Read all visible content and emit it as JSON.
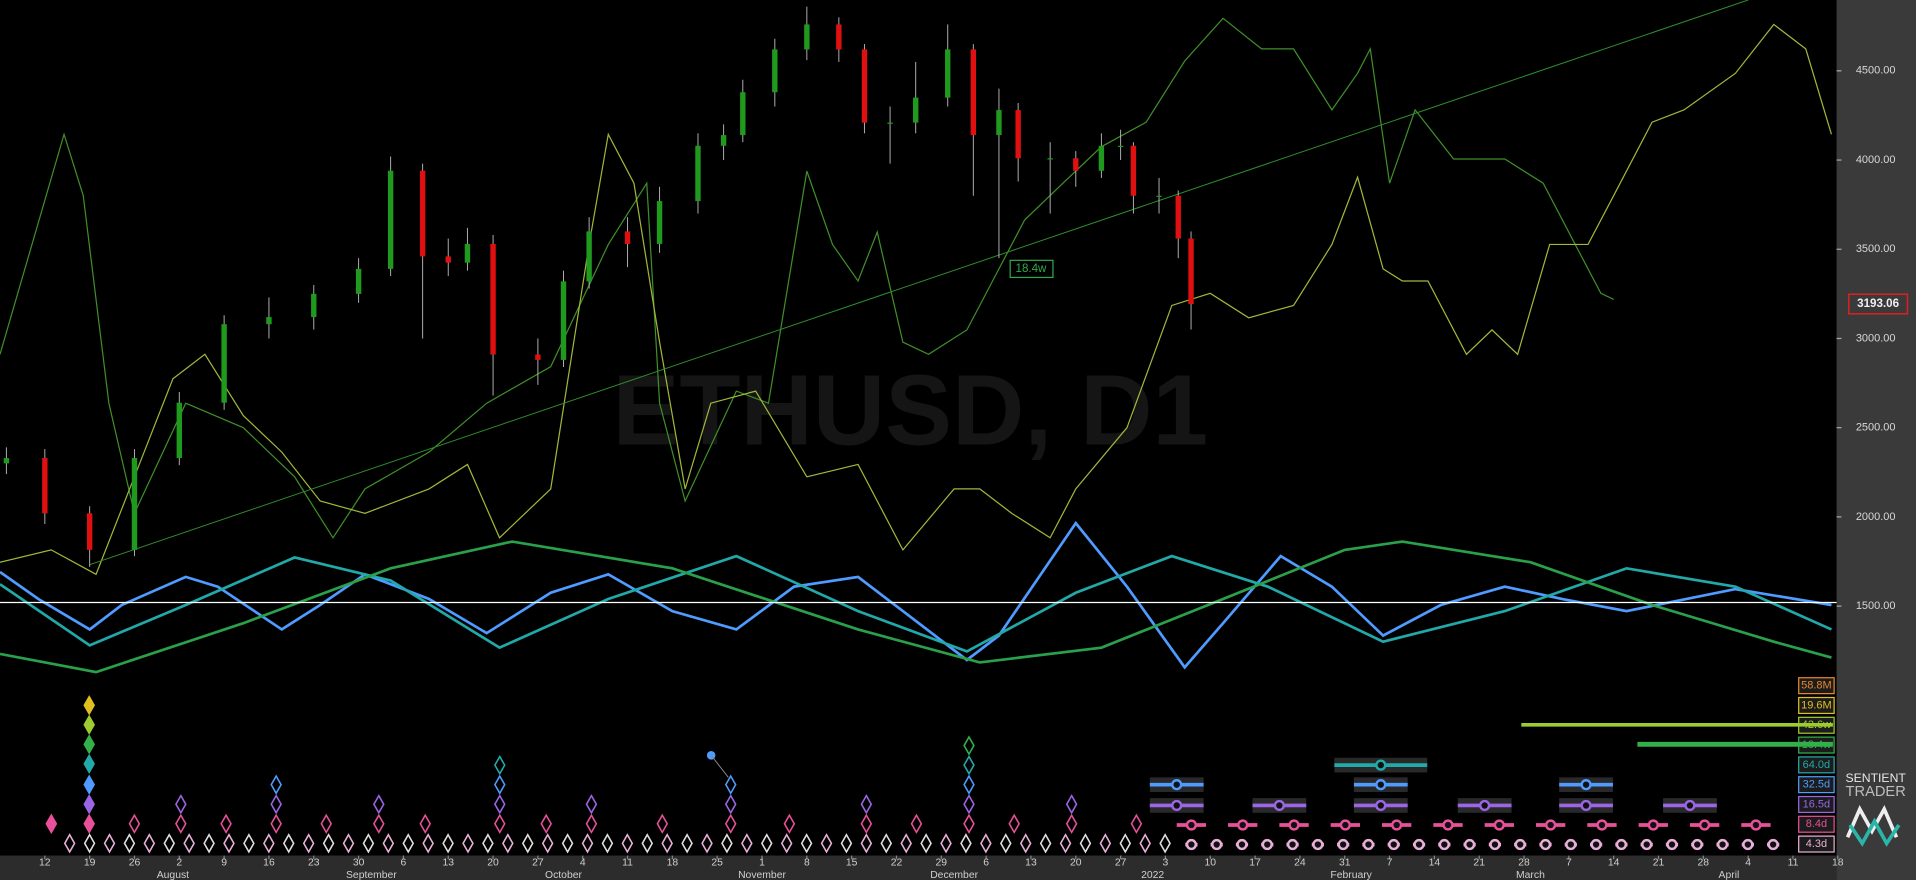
{
  "chart_data": {
    "type": "candlestick",
    "title": "ETHUSD, D1",
    "xlim": [
      0,
      287
    ],
    "ylim": [
      102,
      4897
    ],
    "xticks": [
      {
        "value": 7,
        "label": "12"
      },
      {
        "value": 14,
        "label": "19"
      },
      {
        "value": 21,
        "label": "26"
      },
      {
        "value": 28,
        "label": "2"
      },
      {
        "value": 35,
        "label": "9"
      },
      {
        "value": 42,
        "label": "16"
      },
      {
        "value": 49,
        "label": "23"
      },
      {
        "value": 56,
        "label": "30"
      },
      {
        "value": 63,
        "label": "6"
      },
      {
        "value": 70,
        "label": "13"
      },
      {
        "value": 77,
        "label": "20"
      },
      {
        "value": 84,
        "label": "27"
      },
      {
        "value": 91,
        "label": "4"
      },
      {
        "value": 98,
        "label": "11"
      },
      {
        "value": 105,
        "label": "18"
      },
      {
        "value": 112,
        "label": "25"
      },
      {
        "value": 119,
        "label": "1"
      },
      {
        "value": 126,
        "label": "8"
      },
      {
        "value": 133,
        "label": "15"
      },
      {
        "value": 140,
        "label": "22"
      },
      {
        "value": 147,
        "label": "29"
      },
      {
        "value": 154,
        "label": "6"
      },
      {
        "value": 161,
        "label": "13"
      },
      {
        "value": 168,
        "label": "20"
      },
      {
        "value": 175,
        "label": "27"
      },
      {
        "value": 182,
        "label": "3"
      },
      {
        "value": 189,
        "label": "10"
      },
      {
        "value": 196,
        "label": "17"
      },
      {
        "value": 203,
        "label": "24"
      },
      {
        "value": 210,
        "label": "31"
      },
      {
        "value": 217,
        "label": "7"
      },
      {
        "value": 224,
        "label": "14"
      },
      {
        "value": 231,
        "label": "21"
      },
      {
        "value": 238,
        "label": "28"
      },
      {
        "value": 245,
        "label": "7"
      },
      {
        "value": 252,
        "label": "14"
      },
      {
        "value": 259,
        "label": "21"
      },
      {
        "value": 266,
        "label": "28"
      },
      {
        "value": 273,
        "label": "4"
      },
      {
        "value": 280,
        "label": "11"
      },
      {
        "value": 287,
        "label": "18"
      }
    ],
    "month_ticks": [
      {
        "value": 27,
        "label": "August"
      },
      {
        "value": 58,
        "label": "September"
      },
      {
        "value": 88,
        "label": "October"
      },
      {
        "value": 119,
        "label": "November"
      },
      {
        "value": 149,
        "label": "December"
      },
      {
        "value": 180,
        "label": "2022"
      },
      {
        "value": 211,
        "label": "February"
      },
      {
        "value": 239,
        "label": "March"
      },
      {
        "value": 270,
        "label": "April"
      }
    ],
    "yticks": [
      {
        "value": 4500,
        "label": "4500.00"
      },
      {
        "value": 4000,
        "label": "4000.00"
      },
      {
        "value": 3500,
        "label": "3500.00"
      },
      {
        "value": 3000,
        "label": "3000.00"
      },
      {
        "value": 2500,
        "label": "2500.00"
      },
      {
        "value": 2000,
        "label": "2000.00"
      },
      {
        "value": 1500,
        "label": "1500.00"
      }
    ],
    "candles": {
      "up_color": "#1f9a1f",
      "down_color": "#e01010",
      "x": [
        1,
        7,
        14,
        21,
        28,
        35,
        42,
        49,
        56,
        61,
        66,
        70,
        73,
        77,
        84,
        88,
        92,
        98,
        103,
        109,
        113,
        116,
        121,
        126,
        131,
        135,
        139,
        143,
        148,
        152,
        156,
        159,
        164,
        168,
        172,
        175,
        177,
        181,
        184,
        186
      ],
      "open": [
        2300,
        2330,
        2020,
        1815,
        2330,
        2640,
        3080,
        3120,
        3250,
        3390,
        3940,
        3460,
        3425,
        3530,
        2910,
        2880,
        3320,
        3600,
        3530,
        3770,
        4080,
        4140,
        4380,
        4620,
        4760,
        4620,
        4210,
        4210,
        4350,
        4620,
        4140,
        4280,
        4010,
        4010,
        3940,
        4080,
        4080,
        3800,
        3800,
        3560
      ],
      "high": [
        2390,
        2380,
        2060,
        2380,
        2700,
        3130,
        3230,
        3300,
        3450,
        4020,
        3980,
        3560,
        3620,
        3580,
        3000,
        3380,
        3680,
        3680,
        3850,
        4150,
        4200,
        4450,
        4680,
        4860,
        4800,
        4650,
        4300,
        4550,
        4760,
        4650,
        4400,
        4320,
        4100,
        4050,
        4150,
        4170,
        4100,
        3900,
        3830,
        3600
      ],
      "low": [
        2240,
        1960,
        1720,
        1780,
        2290,
        2600,
        3000,
        3050,
        3200,
        3350,
        3000,
        3350,
        3380,
        2680,
        2740,
        2840,
        3280,
        3400,
        3480,
        3700,
        4000,
        4100,
        4300,
        4560,
        4550,
        4150,
        3980,
        4150,
        4300,
        3800,
        3450,
        3880,
        3700,
        3850,
        3900,
        4000,
        3700,
        3700,
        3450,
        3050
      ],
      "close": [
        2330,
        2020,
        1815,
        2330,
        2640,
        3080,
        3120,
        3250,
        3390,
        3940,
        3460,
        3425,
        3530,
        2910,
        2880,
        3320,
        3600,
        3530,
        3770,
        4080,
        4140,
        4380,
        4620,
        4760,
        4620,
        4210,
        4210,
        4350,
        4620,
        4140,
        4280,
        4010,
        4010,
        3940,
        4080,
        4080,
        3800,
        3800,
        3560,
        3193.06
      ]
    },
    "overlays": [
      {
        "color": "#3f8f2a",
        "x": [
          0,
          10,
          13,
          17,
          21,
          29,
          38,
          46,
          52,
          57,
          67,
          76,
          86,
          95,
          101,
          103,
          107,
          115,
          120,
          126,
          130,
          134,
          137,
          141,
          145,
          151,
          155,
          160,
          166,
          172,
          179,
          185,
          191,
          197,
          202,
          208,
          212,
          214,
          217,
          221,
          227,
          235,
          241,
          246,
          250,
          252
        ],
        "values": [
          2911,
          4144,
          3801,
          2637,
          2020,
          2637,
          2500,
          2225,
          1883,
          2157,
          2363,
          2637,
          2842,
          3527,
          3870,
          2637,
          2089,
          2705,
          2637,
          3938,
          3527,
          3322,
          3596,
          2979,
          2911,
          3048,
          3322,
          3664,
          3870,
          4075,
          4212,
          4555,
          4794,
          4623,
          4623,
          4281,
          4486,
          4623,
          3870,
          4281,
          4006,
          4006,
          3870,
          3527,
          3253,
          3219
        ]
      },
      {
        "color": "#9fb83a",
        "x": [
          0,
          8,
          15,
          21,
          27,
          32,
          38,
          44,
          50,
          57,
          67,
          73,
          78,
          86,
          92,
          95,
          99,
          103,
          107,
          111,
          118,
          126,
          134,
          141,
          149,
          153,
          158,
          164,
          168,
          176,
          183,
          189,
          195,
          202,
          208,
          212,
          216,
          219,
          223,
          229,
          233,
          237,
          242,
          248,
          252,
          258,
          263,
          271,
          277,
          282,
          286
        ],
        "values": [
          1746,
          1815,
          1678,
          2225,
          2774,
          2911,
          2568,
          2363,
          2089,
          2020,
          2157,
          2294,
          1883,
          2157,
          3527,
          4144,
          3870,
          2979,
          2157,
          2637,
          2705,
          2225,
          2294,
          1815,
          2157,
          2157,
          2020,
          1883,
          2157,
          2500,
          3185,
          3253,
          3116,
          3185,
          3527,
          3904,
          3390,
          3322,
          3322,
          2911,
          3048,
          2911,
          3527,
          3527,
          3801,
          4212,
          4281,
          4486,
          4760,
          4623,
          4144
        ]
      },
      {
        "color": "#2f8f2f",
        "x": [
          14,
          273
        ],
        "values": [
          1732,
          4897
        ]
      }
    ],
    "cycles": [
      {
        "color": "#4f9bff",
        "x": [
          0,
          6,
          14,
          19,
          29,
          34,
          44,
          50,
          57,
          67,
          76,
          86,
          95,
          105,
          115,
          124,
          134,
          141,
          151,
          156,
          168,
          176,
          185,
          191,
          200,
          208,
          216,
          225,
          235,
          244,
          254,
          271,
          286
        ],
        "values": [
          1691,
          1540,
          1369,
          1506,
          1664,
          1609,
          1369,
          1506,
          1678,
          1540,
          1349,
          1575,
          1678,
          1472,
          1369,
          1609,
          1664,
          1472,
          1198,
          1335,
          1965,
          1609,
          1157,
          1404,
          1780,
          1609,
          1335,
          1506,
          1609,
          1540,
          1472,
          1595,
          1506
        ]
      },
      {
        "color": "#22a8a8",
        "x": [
          0,
          14,
          29,
          46,
          61,
          78,
          95,
          115,
          134,
          151,
          168,
          183,
          198,
          216,
          235,
          254,
          271,
          286
        ],
        "values": [
          1623,
          1280,
          1506,
          1773,
          1643,
          1267,
          1540,
          1780,
          1472,
          1246,
          1575,
          1780,
          1609,
          1301,
          1472,
          1712,
          1609,
          1369
        ]
      },
      {
        "color": "#2aa04a",
        "x": [
          0,
          15,
          38,
          61,
          80,
          105,
          134,
          153,
          172,
          191,
          210,
          219,
          239,
          258,
          277,
          286
        ],
        "values": [
          1232,
          1130,
          1404,
          1712,
          1862,
          1712,
          1369,
          1184,
          1267,
          1540,
          1815,
          1862,
          1746,
          1506,
          1301,
          1212
        ]
      }
    ],
    "hline": {
      "value": 1520,
      "color": "#ffffff"
    },
    "annotation": {
      "label": "18.4w",
      "x": 161,
      "value": 3390,
      "color": "#2faa4a"
    },
    "cycle_labels": [
      {
        "label": "58.8M",
        "color": "#e8872a"
      },
      {
        "label": "19.6M",
        "color": "#e0c020"
      },
      {
        "label": "42.6w",
        "color": "#9ccc30"
      },
      {
        "label": "18.4w",
        "color": "#33b04a"
      },
      {
        "label": "64.0d",
        "color": "#22aaaa"
      },
      {
        "label": "32.5d",
        "color": "#4f9bff"
      },
      {
        "label": "16.5d",
        "color": "#9a66e6"
      },
      {
        "label": "8.4d",
        "color": "#e8509a"
      },
      {
        "label": "4.3d",
        "color": "#e8b0d8"
      }
    ],
    "branding": {
      "line1": "SENTIENT",
      "line2": "TRADER"
    }
  }
}
